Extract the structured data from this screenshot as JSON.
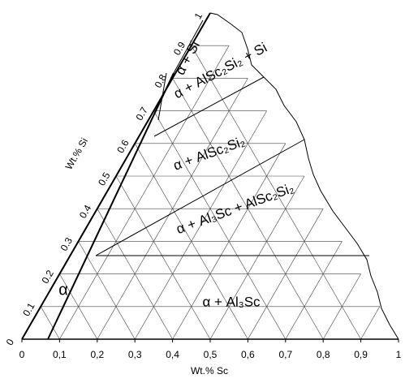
{
  "axes": {
    "si_label": "Wt.% Si",
    "sc_label": "Wt.% Sc",
    "si_ticks": [
      "0",
      "0.1",
      "0.2",
      "0.3",
      "0.4",
      "0.5",
      "0.6",
      "0.7",
      "0.8",
      "0.9",
      "1"
    ],
    "sc_ticks": [
      "0",
      "0,1",
      "0,2",
      "0,3",
      "0,4",
      "0,5",
      "0,6",
      "0,7",
      "0,8",
      "0,9",
      "1"
    ]
  },
  "regions": [
    "α",
    "α + Si",
    "α + AlSc₂Si₂ + Si",
    "α + AlSc₂Si₂",
    "α + Al₃Sc + AlSc₂Si₂",
    "α + Al₃Sc"
  ]
}
